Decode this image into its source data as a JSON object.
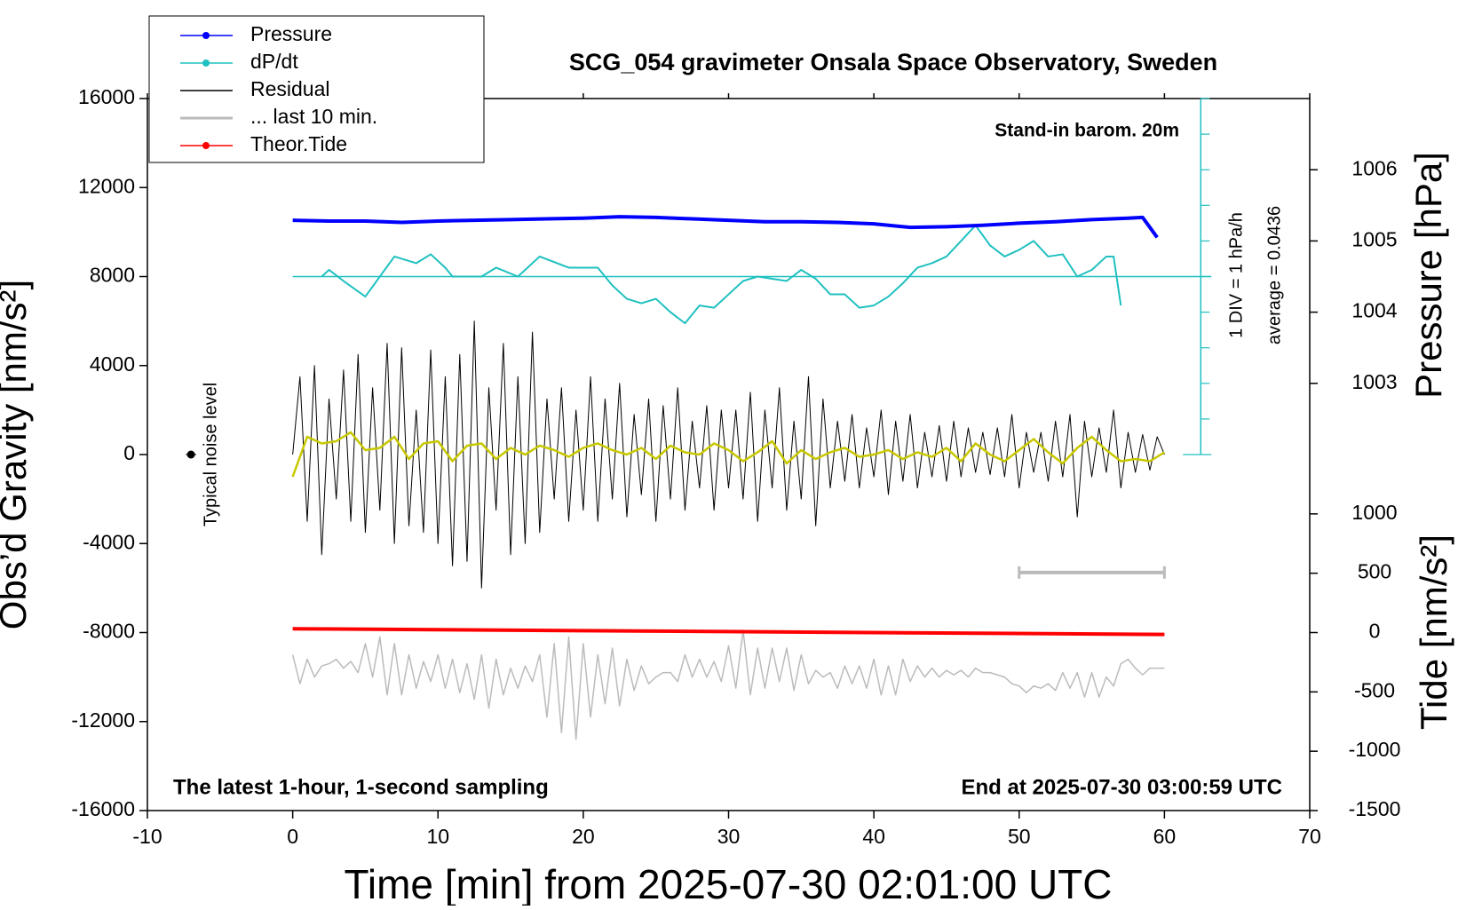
{
  "chart_data": {
    "type": "line",
    "title": "SCG_054 gravimeter Onsala Space Observatory, Sweden",
    "x_label": "Time [min] from 2025-07-30 02:01:00 UTC",
    "y_label": "Obs’d Gravity [nm/s²]",
    "y2_label": "Pressure [hPa]",
    "y3_label": "Tide [nm/s²]",
    "annotations": {
      "barometer": "Stand-in barom. 20m",
      "div": "1 DIV = 1 hPa/h",
      "average": "average = 0.0436",
      "noise": "Typical noise level",
      "sampling": "The latest 1-hour, 1-second sampling",
      "end": "End at 2025-07-30 03:00:59 UTC"
    },
    "xlim": [
      -10,
      70
    ],
    "xticks": [
      -10,
      0,
      10,
      20,
      30,
      40,
      50,
      60,
      70
    ],
    "ylim": [
      -16000,
      16000
    ],
    "yticks": [
      -16000,
      -12000,
      -8000,
      -4000,
      0,
      4000,
      8000,
      12000,
      16000
    ],
    "y2lim": [
      997,
      1007
    ],
    "y2ticks": [
      1003,
      1004,
      1005,
      1006
    ],
    "y3lim": [
      -1500,
      4500
    ],
    "y3ticks": [
      -1500,
      -1000,
      -500,
      0,
      500,
      1000
    ],
    "legend": "upper left",
    "noise_level": {
      "x": -7,
      "y": 0
    },
    "last_10min_bar": {
      "x": [
        50,
        60
      ],
      "y": -5300,
      "color": "#bbbbbb"
    },
    "dpdt_scale": {
      "x": 62.5,
      "zero": 8000,
      "ticks": [
        0,
        1600,
        3200,
        4800,
        6400,
        8000,
        9600,
        11200,
        12800,
        14400,
        16000
      ],
      "color": "#20c0c0"
    },
    "series": [
      {
        "name": "Pressure",
        "color": "#0000ff",
        "axis": "y2",
        "line_width": 4,
        "legend_marker": true,
        "x": [
          0,
          2.5,
          5,
          7.5,
          10,
          12.5,
          15,
          17.5,
          20,
          22.5,
          25,
          27.5,
          30,
          32.5,
          35,
          37.5,
          40,
          42.5,
          45,
          47.5,
          50,
          52.5,
          55,
          57.5,
          58.5,
          59.5
        ],
        "values": [
          1005.29,
          1005.28,
          1005.28,
          1005.26,
          1005.28,
          1005.29,
          1005.3,
          1005.31,
          1005.32,
          1005.34,
          1005.33,
          1005.31,
          1005.29,
          1005.27,
          1005.27,
          1005.26,
          1005.24,
          1005.19,
          1005.2,
          1005.22,
          1005.25,
          1005.27,
          1005.3,
          1005.32,
          1005.33,
          1005.05
        ]
      },
      {
        "name": "dP/dt",
        "color": "#20c0c0",
        "axis": "y",
        "line_width": 2,
        "legend_marker": true,
        "x": [
          2,
          2.5,
          3.5,
          5,
          6,
          7,
          8.5,
          9.5,
          10.5,
          11,
          13,
          14,
          15.5,
          17,
          19,
          21,
          22,
          23,
          24,
          25,
          26,
          27,
          28,
          29,
          30,
          31,
          32,
          33,
          34,
          35,
          36,
          37,
          38,
          39,
          40,
          41,
          42,
          43,
          44,
          45,
          46,
          47,
          48,
          49,
          50,
          51,
          52,
          53,
          54,
          55,
          56,
          56.5,
          57
        ],
        "values": [
          8000,
          8300,
          7800,
          7100,
          8000,
          8900,
          8600,
          9000,
          8400,
          8000,
          8000,
          8400,
          8000,
          8900,
          8400,
          8400,
          7600,
          7000,
          6800,
          7000,
          6400,
          5900,
          6700,
          6600,
          7200,
          7800,
          8000,
          7900,
          7800,
          8300,
          7900,
          7200,
          7200,
          6600,
          6700,
          7100,
          7700,
          8400,
          8600,
          8900,
          9600,
          10300,
          9400,
          8900,
          9200,
          9600,
          8900,
          9000,
          8000,
          8300,
          8900,
          8900,
          6700
        ]
      },
      {
        "name": "Residual",
        "color": "#000000",
        "axis": "y",
        "line_width": 1,
        "x": [
          0,
          0.5,
          1,
          1.5,
          2,
          2.5,
          3,
          3.5,
          4,
          4.5,
          5,
          5.5,
          6,
          6.5,
          7,
          7.5,
          8,
          8.5,
          9,
          9.5,
          10,
          10.5,
          11,
          11.5,
          12,
          12.5,
          13,
          13.5,
          14,
          14.5,
          15,
          15.5,
          16,
          16.5,
          17,
          17.5,
          18,
          18.5,
          19,
          19.5,
          20,
          20.5,
          21,
          21.5,
          22,
          22.5,
          23,
          23.5,
          24,
          24.5,
          25,
          25.5,
          26,
          26.5,
          27,
          27.5,
          28,
          28.5,
          29,
          29.5,
          30,
          30.5,
          31,
          31.5,
          32,
          32.5,
          33,
          33.5,
          34,
          34.5,
          35,
          35.5,
          36,
          36.5,
          37,
          37.5,
          38,
          38.5,
          39,
          39.5,
          40,
          40.5,
          41,
          41.5,
          42,
          42.5,
          43,
          43.5,
          44,
          44.5,
          45,
          45.5,
          46,
          46.5,
          47,
          47.5,
          48,
          48.5,
          49,
          49.5,
          50,
          50.5,
          51,
          51.5,
          52,
          52.5,
          53,
          53.5,
          54,
          54.5,
          55,
          55.5,
          56,
          56.5,
          57,
          57.5,
          58,
          58.5,
          59,
          59.5,
          60
        ],
        "values": [
          0,
          3500,
          -3000,
          4000,
          -4500,
          2500,
          -2000,
          3800,
          -3000,
          4500,
          -3500,
          3000,
          -2500,
          5000,
          -4000,
          4800,
          -3200,
          2000,
          -3500,
          4700,
          -4000,
          3500,
          -5000,
          4500,
          -4800,
          6000,
          -6000,
          3000,
          -2500,
          5000,
          -4500,
          3500,
          -4000,
          5500,
          -3500,
          2500,
          -2000,
          3000,
          -3000,
          2000,
          -2500,
          3500,
          -3000,
          2500,
          -2000,
          3200,
          -2800,
          1800,
          -1800,
          2500,
          -3000,
          2200,
          -2000,
          3000,
          -2500,
          1500,
          -1500,
          2200,
          -2500,
          2000,
          -1500,
          2000,
          -2000,
          2800,
          -3000,
          2000,
          -1500,
          3000,
          -2500,
          1500,
          -2000,
          3500,
          -3200,
          2500,
          -1500,
          1500,
          -1200,
          1800,
          -1500,
          1200,
          -1000,
          2000,
          -1800,
          1500,
          -1200,
          1800,
          -1500,
          1000,
          -1000,
          1300,
          -1200,
          1500,
          -1000,
          1200,
          -800,
          1000,
          -900,
          1200,
          -1000,
          1800,
          -1500,
          1000,
          -800,
          1000,
          -1200,
          1500,
          -1000,
          1800,
          -2800,
          1500,
          -1000,
          1200,
          -800,
          2000,
          -1500,
          1000,
          -800,
          900,
          -700,
          800,
          0
        ]
      },
      {
        "color": "#c8c800",
        "axis": "y",
        "line_width": 2.5,
        "x": [
          0,
          1,
          2,
          3,
          4,
          5,
          6,
          7,
          8,
          9,
          10,
          11,
          12,
          13,
          14,
          15,
          16,
          17,
          18,
          19,
          20,
          21,
          22,
          23,
          24,
          25,
          26,
          27,
          28,
          29,
          30,
          31,
          32,
          33,
          34,
          35,
          36,
          37,
          38,
          39,
          40,
          41,
          42,
          43,
          44,
          45,
          46,
          47,
          48,
          49,
          50,
          51,
          52,
          53,
          54,
          55,
          56,
          57,
          58,
          59,
          60
        ],
        "values": [
          -1000,
          800,
          500,
          600,
          1000,
          200,
          300,
          800,
          -200,
          500,
          600,
          -300,
          400,
          500,
          -200,
          300,
          0,
          400,
          200,
          -100,
          300,
          500,
          200,
          0,
          300,
          -200,
          400,
          100,
          0,
          500,
          200,
          -300,
          100,
          600,
          -400,
          200,
          -200,
          100,
          300,
          -100,
          0,
          200,
          -200,
          100,
          -100,
          300,
          -300,
          500,
          0,
          -300,
          200,
          700,
          100,
          -400,
          300,
          800,
          200,
          -300,
          -200,
          -300,
          100
        ]
      },
      {
        "name": "... last 10 min.",
        "color": "#bbbbbb",
        "axis": "y",
        "line_width": 1.5,
        "x": [
          0,
          0.5,
          1,
          1.5,
          2,
          2.5,
          3,
          3.5,
          4,
          4.5,
          5,
          5.5,
          6,
          6.5,
          7,
          7.5,
          8,
          8.5,
          9,
          9.5,
          10,
          10.5,
          11,
          11.5,
          12,
          12.5,
          13,
          13.5,
          14,
          14.5,
          15,
          15.5,
          16,
          16.5,
          17,
          17.5,
          18,
          18.5,
          19,
          19.5,
          20,
          20.5,
          21,
          21.5,
          22,
          22.5,
          23,
          23.5,
          24,
          24.5,
          25,
          25.5,
          26,
          26.5,
          27,
          27.5,
          28,
          28.5,
          29,
          29.5,
          30,
          30.5,
          31,
          31.5,
          32,
          32.5,
          33,
          33.5,
          34,
          34.5,
          35,
          35.5,
          36,
          36.5,
          37,
          37.5,
          38,
          38.5,
          39,
          39.5,
          40,
          40.5,
          41,
          41.5,
          42,
          42.5,
          43,
          43.5,
          44,
          44.5,
          45,
          45.5,
          46,
          46.5,
          47,
          47.5,
          48,
          48.5,
          49,
          49.5,
          50,
          50.5,
          51,
          51.5,
          52,
          52.5,
          53,
          53.5,
          54,
          54.5,
          55,
          55.5,
          56,
          56.5,
          57,
          57.5,
          58,
          58.5,
          59,
          59.5,
          60
        ],
        "values": [
          -9000,
          -10300,
          -9200,
          -10000,
          -9500,
          -9400,
          -9200,
          -9600,
          -9300,
          -9800,
          -8500,
          -10000,
          -8200,
          -10800,
          -8500,
          -10800,
          -9000,
          -10500,
          -9300,
          -10200,
          -9000,
          -10500,
          -9200,
          -10700,
          -9400,
          -11000,
          -9000,
          -11400,
          -9200,
          -10800,
          -9600,
          -10500,
          -9500,
          -10200,
          -9000,
          -11800,
          -8500,
          -12500,
          -8200,
          -12800,
          -8500,
          -11800,
          -9000,
          -11200,
          -8700,
          -11300,
          -9200,
          -10600,
          -9500,
          -10300,
          -10000,
          -9800,
          -9800,
          -10200,
          -9000,
          -10000,
          -9200,
          -10000,
          -9300,
          -10200,
          -8600,
          -10500,
          -7900,
          -10800,
          -8700,
          -10500,
          -8700,
          -10200,
          -8700,
          -10600,
          -9000,
          -10300,
          -9700,
          -10000,
          -9800,
          -10500,
          -9500,
          -10300,
          -9500,
          -10500,
          -9200,
          -10800,
          -9500,
          -10800,
          -9200,
          -10200,
          -9500,
          -10000,
          -9600,
          -10000,
          -9700,
          -9900,
          -9700,
          -10000,
          -9600,
          -9800,
          -9800,
          -9900,
          -10000,
          -10300,
          -10400,
          -10700,
          -10400,
          -10500,
          -10300,
          -10600,
          -9800,
          -10500,
          -9800,
          -10900,
          -9800,
          -10900,
          -10000,
          -10400,
          -9400,
          -9200,
          -9600,
          -9900,
          -9600,
          -9600,
          -9600
        ]
      },
      {
        "name": "Theor.Tide",
        "color": "#ff0000",
        "axis": "y3",
        "line_width": 4,
        "legend_marker": true,
        "x": [
          0,
          60
        ],
        "values": [
          32,
          -16
        ]
      }
    ]
  }
}
